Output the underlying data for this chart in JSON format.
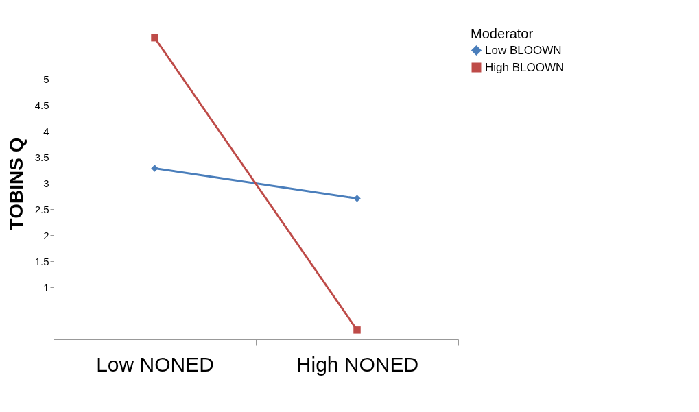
{
  "chart_data": {
    "type": "line",
    "ylabel": "TOBINS Q",
    "legend_title": "Moderator",
    "legend": "right",
    "grid": false,
    "categories": [
      "Low NONED",
      "High NONED"
    ],
    "ylim": [
      0,
      6
    ],
    "yticks": [
      1,
      1.5,
      2,
      2.5,
      3,
      3.5,
      4,
      4.5,
      5
    ],
    "series": [
      {
        "name": "Low BLOOWN",
        "color": "#4a7ebb",
        "marker": "diamond",
        "values": [
          3.29,
          2.71
        ]
      },
      {
        "name": "High BLOOWN",
        "color": "#be4b48",
        "marker": "square",
        "values": [
          5.8,
          0.18
        ]
      }
    ]
  }
}
